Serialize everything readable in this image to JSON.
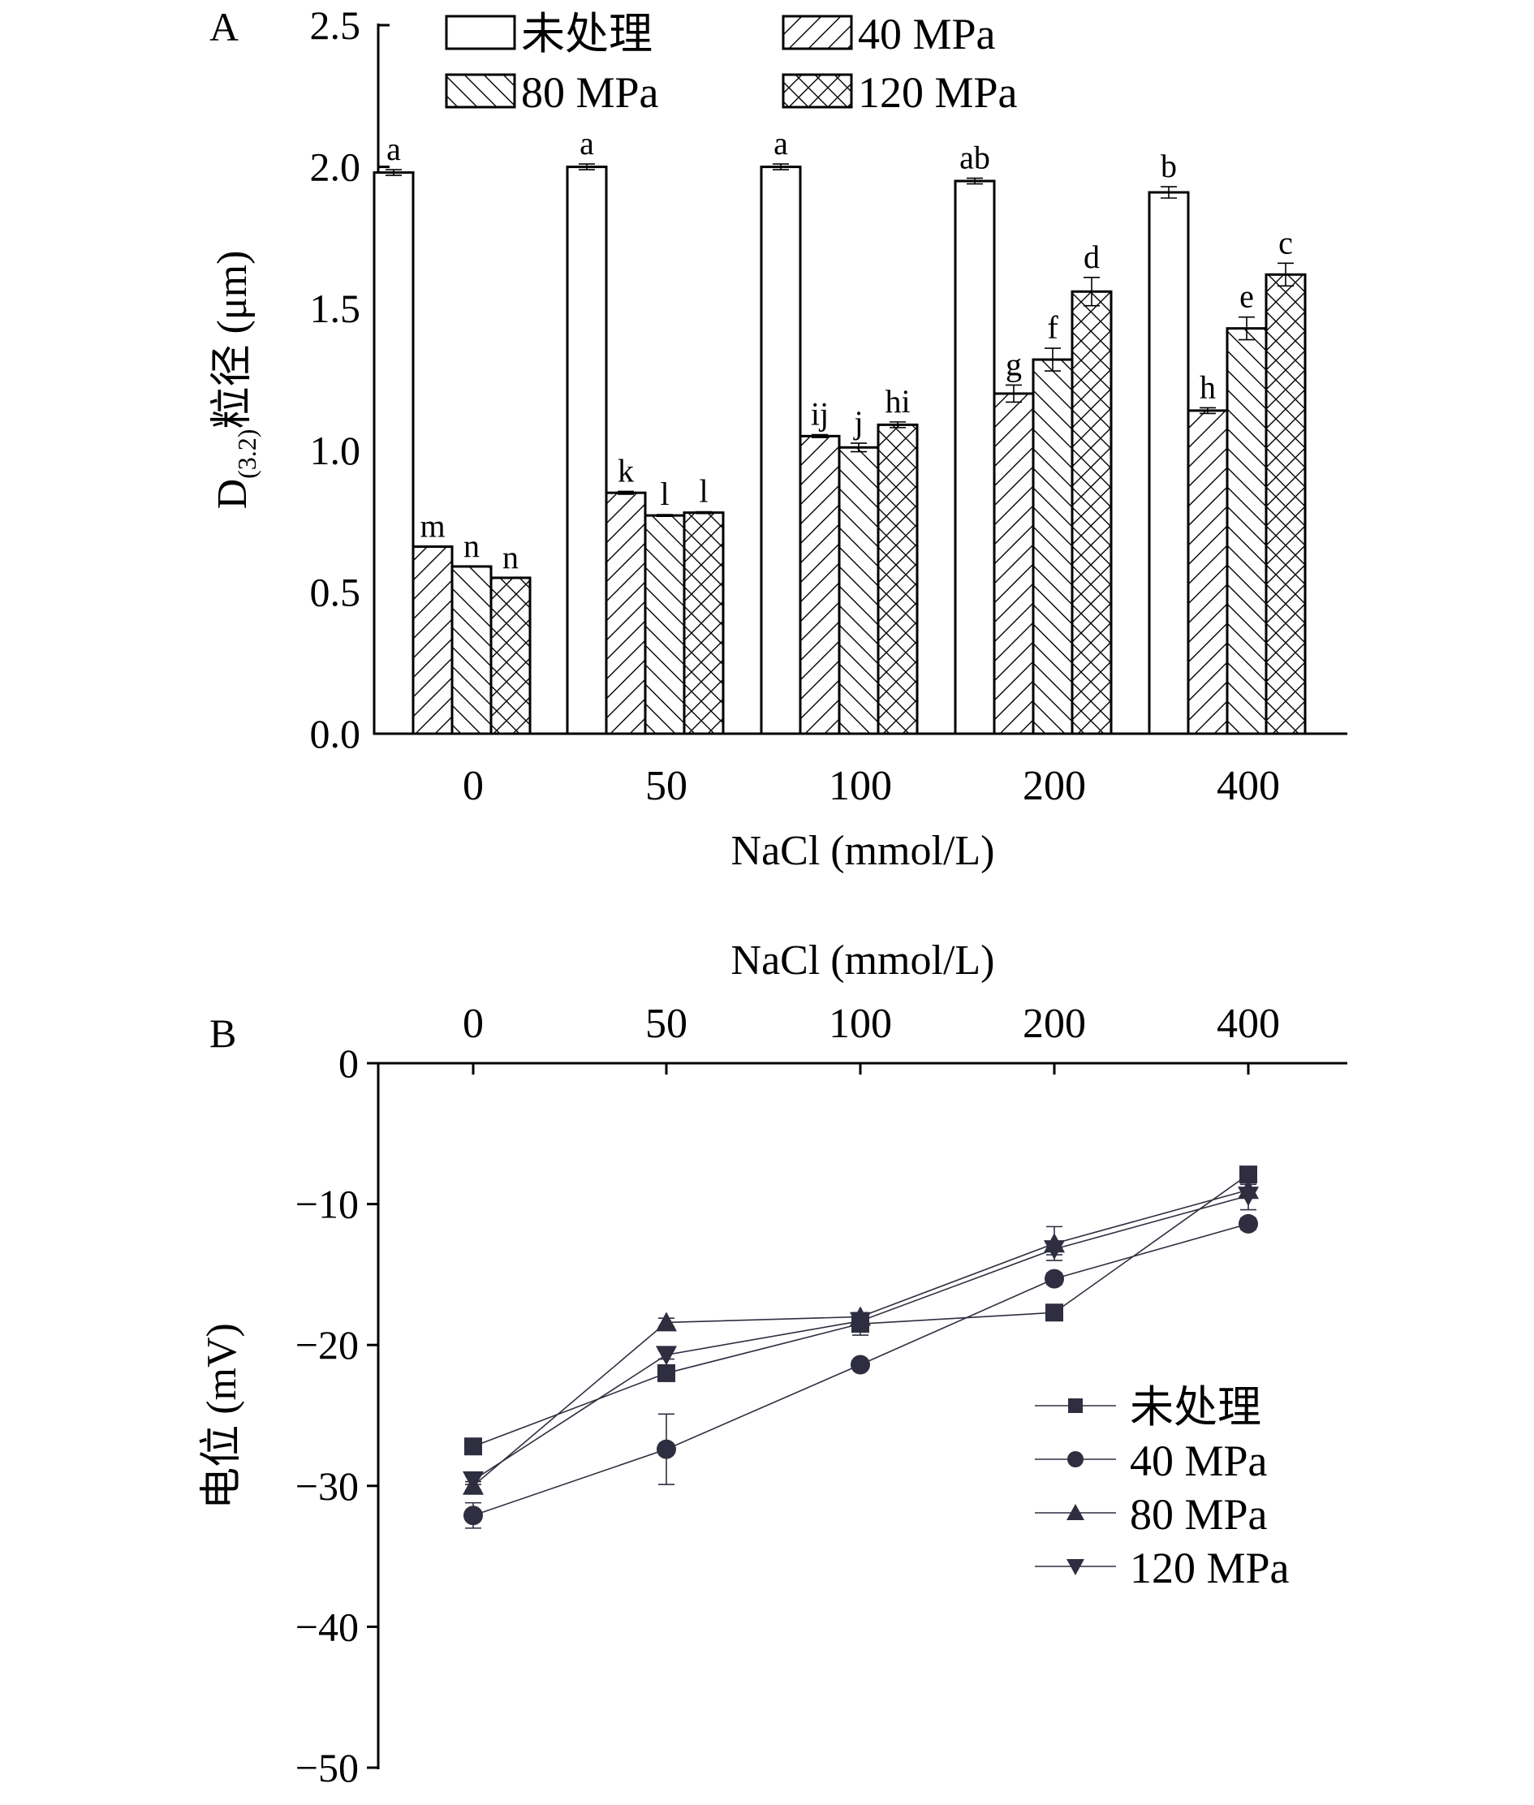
{
  "chart_data": [
    {
      "panel": "A",
      "type": "bar",
      "title": "",
      "xlabel": "NaCl (mmol/L)",
      "ylabel": {
        "main": "D",
        "sub": "(3.2)",
        "rest": "粒径 (μm)"
      },
      "ylim": [
        0,
        2.5
      ],
      "yticks": [
        "0.0",
        "0.5",
        "1.0",
        "1.5",
        "2.0",
        "2.5"
      ],
      "ytick_values": [
        0,
        0.5,
        1.0,
        1.5,
        2.0,
        2.5
      ],
      "categories": [
        "0",
        "50",
        "100",
        "200",
        "400"
      ],
      "legend_position": "top",
      "series": [
        {
          "name": "未处理",
          "pattern": "none",
          "values": [
            1.98,
            2.0,
            2.0,
            1.95,
            1.91
          ],
          "errors": [
            0.01,
            0.01,
            0.01,
            0.01,
            0.02
          ],
          "labels": [
            "a",
            "a",
            "a",
            "ab",
            "b"
          ]
        },
        {
          "name": "40 MPa",
          "pattern": "forward-diagonal",
          "values": [
            0.66,
            0.85,
            1.05,
            1.2,
            1.14
          ],
          "errors": [
            0.0,
            0.005,
            0.005,
            0.03,
            0.01
          ],
          "labels": [
            "m",
            "k",
            "ij",
            "g",
            "h"
          ]
        },
        {
          "name": "80 MPa",
          "pattern": "back-diagonal",
          "values": [
            0.59,
            0.77,
            1.01,
            1.32,
            1.43
          ],
          "errors": [
            0.0,
            0.003,
            0.015,
            0.04,
            0.04
          ],
          "labels": [
            "n",
            "l",
            "j",
            "f",
            "e"
          ]
        },
        {
          "name": "120 MPa",
          "pattern": "crosshatch",
          "values": [
            0.55,
            0.78,
            1.09,
            1.56,
            1.62
          ],
          "errors": [
            0.0,
            0.003,
            0.01,
            0.05,
            0.04
          ],
          "labels": [
            "n",
            "l",
            "hi",
            "d",
            "c"
          ]
        }
      ]
    },
    {
      "panel": "B",
      "type": "line",
      "title": "",
      "xlabel": "NaCl (mmol/L)",
      "xlabel_position": "top",
      "ylabel": "电位 (mV)",
      "ylim": [
        -50,
        0
      ],
      "yticks": [
        "0",
        "−10",
        "−20",
        "−30",
        "−40",
        "−50"
      ],
      "ytick_values": [
        0,
        -10,
        -20,
        -30,
        -40,
        -50
      ],
      "categories": [
        "0",
        "50",
        "100",
        "200",
        "400"
      ],
      "legend_position": "center-right",
      "series": [
        {
          "name": "未处理",
          "marker": "square",
          "values": [
            -27.2,
            -22.0,
            -18.5,
            -17.7,
            -7.9
          ],
          "errors": [
            0.3,
            0.3,
            0.8,
            0.3,
            0.3
          ]
        },
        {
          "name": "40 MPa",
          "marker": "circle",
          "values": [
            -32.1,
            -27.4,
            -21.4,
            -15.3,
            -11.4
          ],
          "errors": [
            0.9,
            2.5,
            0.3,
            0.4,
            0.4
          ]
        },
        {
          "name": "80 MPa",
          "marker": "triangle-up",
          "values": [
            -30.0,
            -18.4,
            -18.0,
            -12.8,
            -9.0
          ],
          "errors": [
            0.3,
            0.3,
            0.3,
            1.2,
            0.4
          ]
        },
        {
          "name": "120 MPa",
          "marker": "triangle-down",
          "values": [
            -29.6,
            -20.7,
            -18.3,
            -13.2,
            -9.4
          ],
          "errors": [
            0.3,
            0.3,
            0.3,
            0.4,
            1.0
          ]
        }
      ]
    }
  ],
  "panel_labels": {
    "a": "A",
    "b": "B"
  }
}
